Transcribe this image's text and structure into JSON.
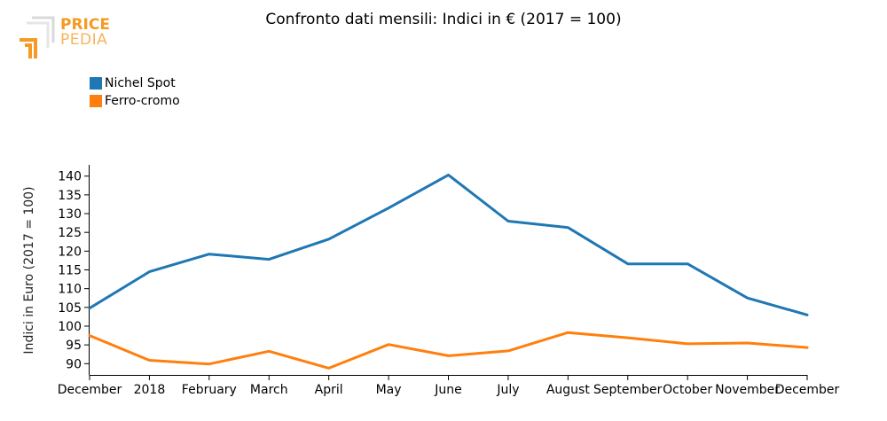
{
  "header": {
    "logo_price": "PRICE",
    "logo_pedia": "PEDIA",
    "title": "Confronto dati mensili: Indici in € (2017 = 100)"
  },
  "colors": {
    "nichel": "#1f77b4",
    "ferro": "#ff7f0e",
    "logo": "#f59a23"
  },
  "chart_data": {
    "type": "line",
    "title": "Confronto dati mensili: Indici in € (2017 = 100)",
    "xlabel": "",
    "ylabel": "Indici in Euro (2017 = 100)",
    "ylim": [
      87,
      143
    ],
    "yticks": [
      90,
      95,
      100,
      105,
      110,
      115,
      120,
      125,
      130,
      135,
      140
    ],
    "categories": [
      "December",
      "2018",
      "February",
      "March",
      "April",
      "May",
      "June",
      "July",
      "August",
      "September",
      "October",
      "November",
      "December"
    ],
    "legend_position": "top-left",
    "series": [
      {
        "name": "Nichel Spot",
        "color": "#1f77b4",
        "values": [
          104.8,
          114.5,
          119.2,
          117.8,
          123.2,
          131.5,
          140.3,
          128.0,
          126.3,
          116.6,
          116.6,
          107.5,
          103.0
        ]
      },
      {
        "name": "Ferro-cromo",
        "color": "#ff7f0e",
        "values": [
          97.5,
          90.9,
          89.9,
          93.3,
          88.8,
          95.1,
          92.1,
          93.4,
          98.3,
          96.9,
          95.3,
          95.5,
          94.3
        ]
      }
    ]
  }
}
